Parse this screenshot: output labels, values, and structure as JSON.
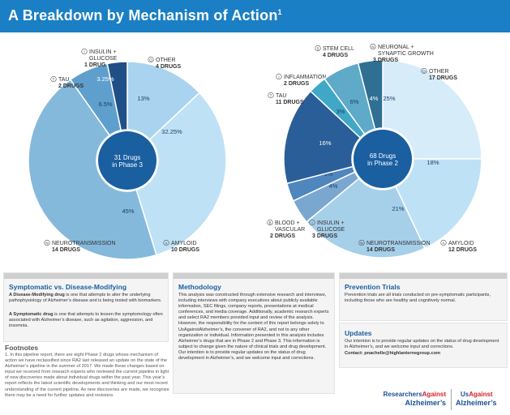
{
  "header": {
    "title": "A Breakdown by Mechanism of Action",
    "footnote_mark": "1"
  },
  "chart_data": [
    {
      "type": "pie",
      "title": "Phase 3",
      "center_label": [
        "31 Drugs",
        "in Phase 3"
      ],
      "total": 31,
      "slices": [
        {
          "name": "OTHER",
          "count_label": "4 DRUGS",
          "value": 13,
          "label": "13%",
          "color": "#a9d3ee"
        },
        {
          "name": "AMYLOID",
          "count_label": "10 DRUGS",
          "value": 32.25,
          "label": "32.25%",
          "color": "#bfe1f5"
        },
        {
          "name": "NEUROTRANSMISSION",
          "count_label": "14 DRUGS",
          "value": 45,
          "label": "45%",
          "color": "#85b9dc"
        },
        {
          "name": "TAU",
          "count_label": "2 DRUGS",
          "value": 6.5,
          "label": "6.5%",
          "color": "#5f9fce"
        },
        {
          "name": "INSULIN + GLUCOSE",
          "count_label": "1 DRUG",
          "value": 3.25,
          "label": "3.25%",
          "color": "#1f4f86"
        }
      ]
    },
    {
      "type": "pie",
      "title": "Phase 2",
      "center_label": [
        "68 Drugs",
        "in Phase 2"
      ],
      "total": 68,
      "slices": [
        {
          "name": "OTHER",
          "count_label": "17 DRUGS",
          "value": 25,
          "label": "25%",
          "color": "#d6ecf9"
        },
        {
          "name": "AMYLOID",
          "count_label": "12 DRUGS",
          "value": 18,
          "label": "18%",
          "color": "#bfe1f5"
        },
        {
          "name": "NEUROTRANSMISSION",
          "count_label": "14 DRUGS",
          "value": 21,
          "label": "21%",
          "color": "#a6cfea"
        },
        {
          "name": "INSULIN + GLUCOSE",
          "count_label": "3 DRUGS",
          "value": 4,
          "label": "4%",
          "color": "#7aa7cf"
        },
        {
          "name": "BLOOD + VASCULAR",
          "count_label": "2 DRUGS",
          "value": 3,
          "label": "3%",
          "color": "#4f86be"
        },
        {
          "name": "TAU",
          "count_label": "11 DRUGS",
          "value": 16,
          "label": "16%",
          "color": "#2a5e98"
        },
        {
          "name": "INFLAMMATION",
          "count_label": "2 DRUGS",
          "value": 3,
          "label": "3%",
          "color": "#3fa8c6"
        },
        {
          "name": "STEM CELL",
          "count_label": "4 DRUGS",
          "value": 6,
          "label": "6%",
          "color": "#5fa9c9"
        },
        {
          "name": "NEURONAL + SYNAPTIC GROWTH",
          "count_label": "3 DRUGS",
          "value": 4,
          "label": "4%",
          "color": "#2f6f93"
        }
      ]
    }
  ],
  "label_letters": {
    "phase3": [
      "O",
      "A",
      "N",
      "T",
      "I"
    ],
    "phase2": [
      "O",
      "A",
      "N",
      "I",
      "B",
      "T",
      "I",
      "S",
      "N"
    ]
  },
  "colors": {
    "header": "#1a7fc4",
    "center": "#1a5fa0",
    "text_blue": "#1a5fa0",
    "brand_red": "#d2232a"
  },
  "symptomatic": {
    "heading": "Symptomatic vs. Disease-Modifying",
    "dm_bold": "A Disease-Modifying drug",
    "dm_text": " is one that attempts to alter the underlying pathophysiology of Alzheimer’s disease and is being tested with biomarkers.",
    "sym_bold": "A Symptomatic drug",
    "sym_text": " is one that attempts to lessen the symptomology often associated with Alzheimer’s disease, such as agitation, aggression, and insomnia."
  },
  "footnotes": {
    "heading": "Footnotes",
    "text": "1. In this pipeline report, there are eight Phase 2 drugs whose mechanism of action we have reclassified since RA2 last released an update on the state of the Alzheimer’s pipeline in the summer of 2017. We made these changes based on input we received from research experts who reviewed the current pipeline in light of new discoveries made about individual drugs within the past year. This year’s report reflects the latest scientific developments and thinking and our most recent understanding of the current pipeline. As new discoveries are made, we recognize there may be a need for further updates and revisions."
  },
  "methodology": {
    "heading": "Methodology",
    "text": "This analysis was constructed through extensive research and interviews, including interviews with company executives about publicly available information, SEC filings, company reports, presentations at medical conferences, and media coverage. Additionally, academic research experts and select RA2 members provided input and review of the analysis. However, the responsibility for the content of this report belongs solely to UsAgainstAlzheimer’s, the convener of RA2, and not to any other organization or individual. Information presented in this analysis includes Alzheimer’s drugs that are in Phase 2 and Phase 3. This information is subject to change given the nature of clinical trials and drug development. Our intention is to provide regular updates on the status of drug development in Alzheimer’s, and we welcome input and corrections."
  },
  "prevention": {
    "heading": "Prevention Trials",
    "text": "Prevention trials are all trials conducted on pre-symptomatic participants, including those who are healthy and cognitively normal."
  },
  "updates": {
    "heading": "Updates",
    "text": "Our intention is to provide regular updates on the status of drug development in Alzheimer’s, and we welcome input and corrections.",
    "contact": "Contact: pnachelle@highlanternegroup.com"
  },
  "logos": {
    "ra2_line1a": "Researchers",
    "ra2_line1b": "Against",
    "ra2_line2": "Alzheimer’s",
    "us_line1a": "Us",
    "us_line1b": "Against",
    "us_line2": "Alzheimer’s"
  }
}
